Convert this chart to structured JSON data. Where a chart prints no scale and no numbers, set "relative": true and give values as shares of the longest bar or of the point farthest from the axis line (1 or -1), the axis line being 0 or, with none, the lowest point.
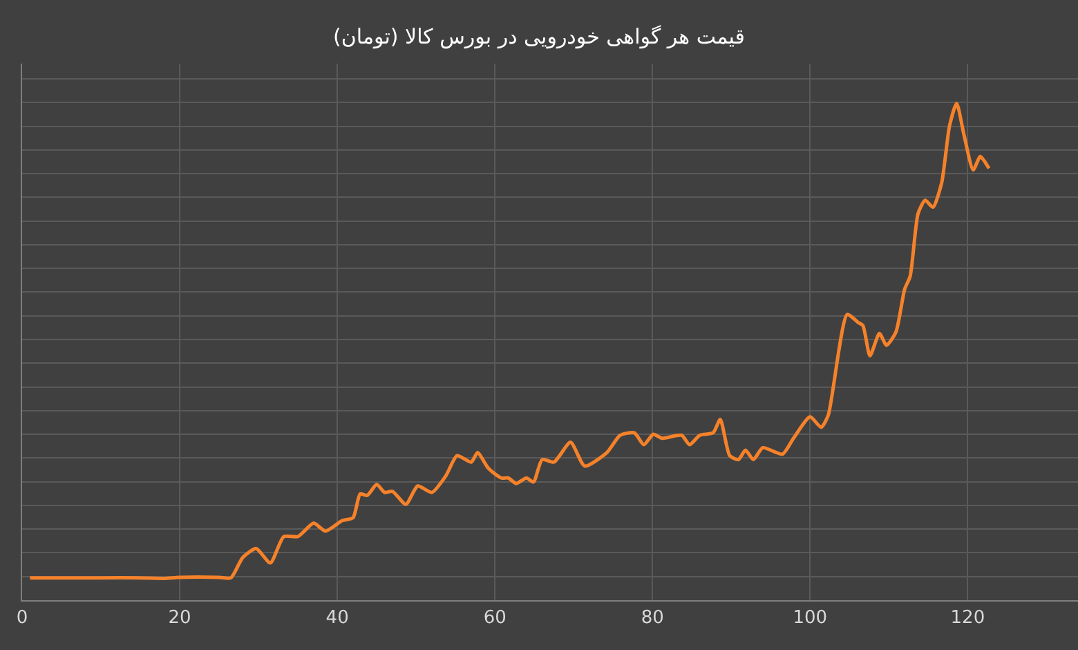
{
  "chart_data": {
    "type": "line",
    "title": "قیمت هر گواهی خودرویی در بورس کالا (تومان)",
    "relative": true,
    "x": [
      1,
      5,
      10,
      15,
      18,
      20,
      25,
      26.5,
      28,
      29.7,
      31.5,
      33.2,
      35,
      37,
      38.5,
      40.6,
      42,
      42.9,
      43.8,
      45,
      46,
      47,
      48.7,
      50.2,
      52,
      53.8,
      55.2,
      57,
      57.8,
      59.2,
      60.8,
      61.7,
      62.7,
      64,
      64.9,
      66,
      67.5,
      69.6,
      71.4,
      74.2,
      75.9,
      77.7,
      78.9,
      80.1,
      81.2,
      83.7,
      84.7,
      86,
      87.7,
      88.6,
      89.8,
      90.9,
      91.8,
      92.8,
      94,
      96.5,
      97.9,
      100,
      101.4,
      102.3,
      104.7,
      106.1,
      106.7,
      107.6,
      108.8,
      109.7,
      110.9,
      112,
      112.7,
      113.7,
      114.6,
      115.6,
      116.7,
      117.7,
      118.6,
      119.5,
      120.7,
      121.6,
      122.7
    ],
    "series": [
      {
        "color": "#f5822a",
        "values": [
          0.045,
          0.045,
          0.045,
          0.045,
          0.044,
          0.046,
          0.046,
          0.045,
          0.086,
          0.104,
          0.075,
          0.128,
          0.128,
          0.155,
          0.139,
          0.16,
          0.166,
          0.214,
          0.211,
          0.233,
          0.217,
          0.219,
          0.193,
          0.23,
          0.217,
          0.251,
          0.291,
          0.278,
          0.297,
          0.265,
          0.246,
          0.246,
          0.235,
          0.246,
          0.238,
          0.283,
          0.278,
          0.318,
          0.27,
          0.297,
          0.332,
          0.337,
          0.313,
          0.334,
          0.326,
          0.332,
          0.313,
          0.332,
          0.337,
          0.364,
          0.291,
          0.283,
          0.302,
          0.283,
          0.307,
          0.294,
          0.326,
          0.369,
          0.348,
          0.372,
          0.575,
          0.559,
          0.553,
          0.492,
          0.537,
          0.513,
          0.54,
          0.626,
          0.652,
          0.778,
          0.805,
          0.791,
          0.84,
          0.955,
          1.0,
          0.939,
          0.866,
          0.893,
          0.869
        ]
      }
    ],
    "xlim": [
      0,
      134
    ],
    "xticks": [
      0,
      20,
      40,
      60,
      80,
      100,
      120
    ],
    "grid": true,
    "marker": "none",
    "line_style": "solid"
  }
}
